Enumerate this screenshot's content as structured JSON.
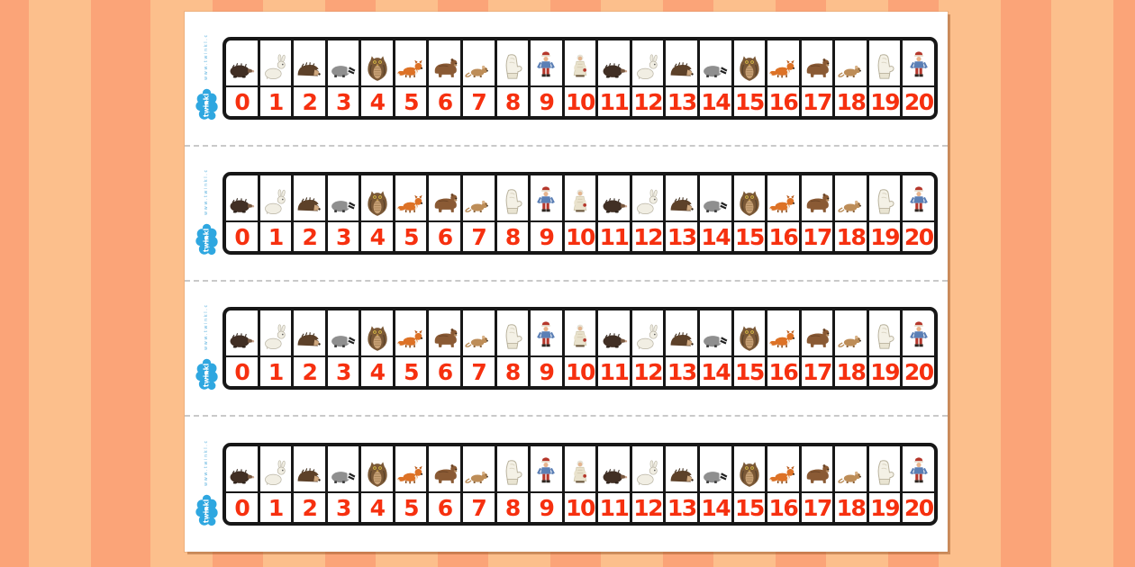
{
  "sheet": {
    "strip_count": 4,
    "paper_color": "#ffffff",
    "background_stripe_light": "#fcbf8c",
    "background_stripe_dark": "#fba478",
    "cut_line_color": "#c9c9c9",
    "cut_line_style": "dashed"
  },
  "branding": {
    "logo_text": "twinkl",
    "vertical_text": "www.twinkl.co.uk",
    "logo_color": "#2fa7e0"
  },
  "track": {
    "range_start": 0,
    "range_end": 20,
    "number_color": "#f6300f",
    "border_color": "#171717",
    "cells": [
      {
        "number": "0",
        "image": "mole"
      },
      {
        "number": "1",
        "image": "hare"
      },
      {
        "number": "2",
        "image": "hedgehog"
      },
      {
        "number": "3",
        "image": "badger"
      },
      {
        "number": "4",
        "image": "owl"
      },
      {
        "number": "5",
        "image": "fox"
      },
      {
        "number": "6",
        "image": "bear"
      },
      {
        "number": "7",
        "image": "mouse"
      },
      {
        "number": "8",
        "image": "mitten"
      },
      {
        "number": "9",
        "image": "boy"
      },
      {
        "number": "10",
        "image": "grandmother"
      },
      {
        "number": "11",
        "image": "mole"
      },
      {
        "number": "12",
        "image": "hare"
      },
      {
        "number": "13",
        "image": "hedgehog"
      },
      {
        "number": "14",
        "image": "badger"
      },
      {
        "number": "15",
        "image": "owl"
      },
      {
        "number": "16",
        "image": "fox"
      },
      {
        "number": "17",
        "image": "bear"
      },
      {
        "number": "18",
        "image": "mouse"
      },
      {
        "number": "19",
        "image": "mitten"
      },
      {
        "number": "20",
        "image": "boy"
      }
    ]
  }
}
